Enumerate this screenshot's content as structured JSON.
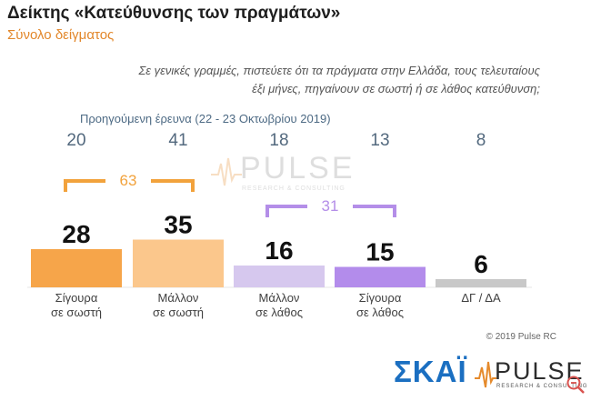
{
  "header": {
    "title": "Δείκτης «Κατεύθυνσης των πραγμάτων»",
    "subtitle": "Σύνολο δείγματος"
  },
  "question": {
    "line1": "Σε γενικές γραμμές, πιστεύετε ότι τα πράγματα στην Ελλάδα, τους τελευταίους",
    "line2": "έξι μήνες, πηγαίνουν σε σωστή ή σε λάθος κατεύθυνση;"
  },
  "previous_survey": {
    "label": "Προηγούμενη έρευνα  (22 - 23  Οκτωβρίου  2019)",
    "values": [
      "20",
      "41",
      "18",
      "13",
      "8"
    ]
  },
  "watermark": {
    "text": "PULSE",
    "sub": "RESEARCH & CONSULTING"
  },
  "brackets": [
    {
      "value": "63",
      "color": "#f2a23c"
    },
    {
      "value": "31",
      "color": "#b48ee8"
    }
  ],
  "chart_data": {
    "type": "bar",
    "categories": [
      {
        "line1": "Σίγουρα",
        "line2": "σε σωστή"
      },
      {
        "line1": "Μάλλον",
        "line2": "σε σωστή"
      },
      {
        "line1": "Μάλλον",
        "line2": "σε λάθος"
      },
      {
        "line1": "Σίγουρα",
        "line2": "σε λάθος"
      },
      {
        "line1": "ΔΓ / ΔΑ",
        "line2": ""
      }
    ],
    "values": [
      28,
      35,
      16,
      15,
      6
    ],
    "colors": [
      "#f6a54a",
      "#fbc78c",
      "#d6c8ee",
      "#b38ceb",
      "#c8c8c8"
    ],
    "ylim": [
      0,
      45
    ]
  },
  "footer": {
    "copyright": "© 2019 Pulse RC",
    "logo_skai": "ΣΚΑΪ",
    "logo_pulse": "PULSE",
    "logo_pulse_sub": "RESEARCH & CONSULTING",
    "zoom_icon": "zoom-icon"
  }
}
